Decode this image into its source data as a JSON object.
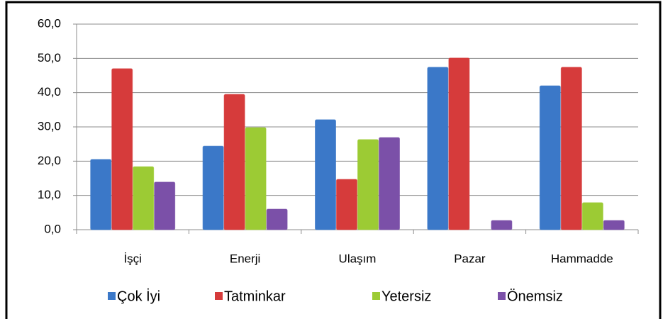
{
  "chart_data": {
    "type": "bar",
    "categories": [
      "İşçi",
      "Enerji",
      "Ulaşım",
      "Pazar",
      "Hammadde"
    ],
    "series": [
      {
        "name": "Çok İyi",
        "color": "#3b78c8",
        "values": [
          20.5,
          24.4,
          32.1,
          47.4,
          42.0
        ]
      },
      {
        "name": "Tatminkar",
        "color": "#d63b3b",
        "values": [
          47.0,
          39.5,
          14.7,
          50.1,
          47.4
        ]
      },
      {
        "name": "Yetersiz",
        "color": "#9ccb34",
        "values": [
          18.4,
          29.8,
          26.3,
          0,
          7.9
        ]
      },
      {
        "name": "Önemsiz",
        "color": "#7b50a8",
        "values": [
          13.9,
          6.0,
          26.9,
          2.7,
          2.7
        ]
      }
    ],
    "ylim": [
      0,
      60
    ],
    "yticks": [
      {
        "value": 0,
        "label": "0,0"
      },
      {
        "value": 10,
        "label": "10,0"
      },
      {
        "value": 20,
        "label": "20,0"
      },
      {
        "value": 30,
        "label": "30,0"
      },
      {
        "value": 40,
        "label": "40,0"
      },
      {
        "value": 50,
        "label": "50,0"
      },
      {
        "value": 60,
        "label": "60,0"
      }
    ],
    "grid": true,
    "legend": "bottom"
  }
}
